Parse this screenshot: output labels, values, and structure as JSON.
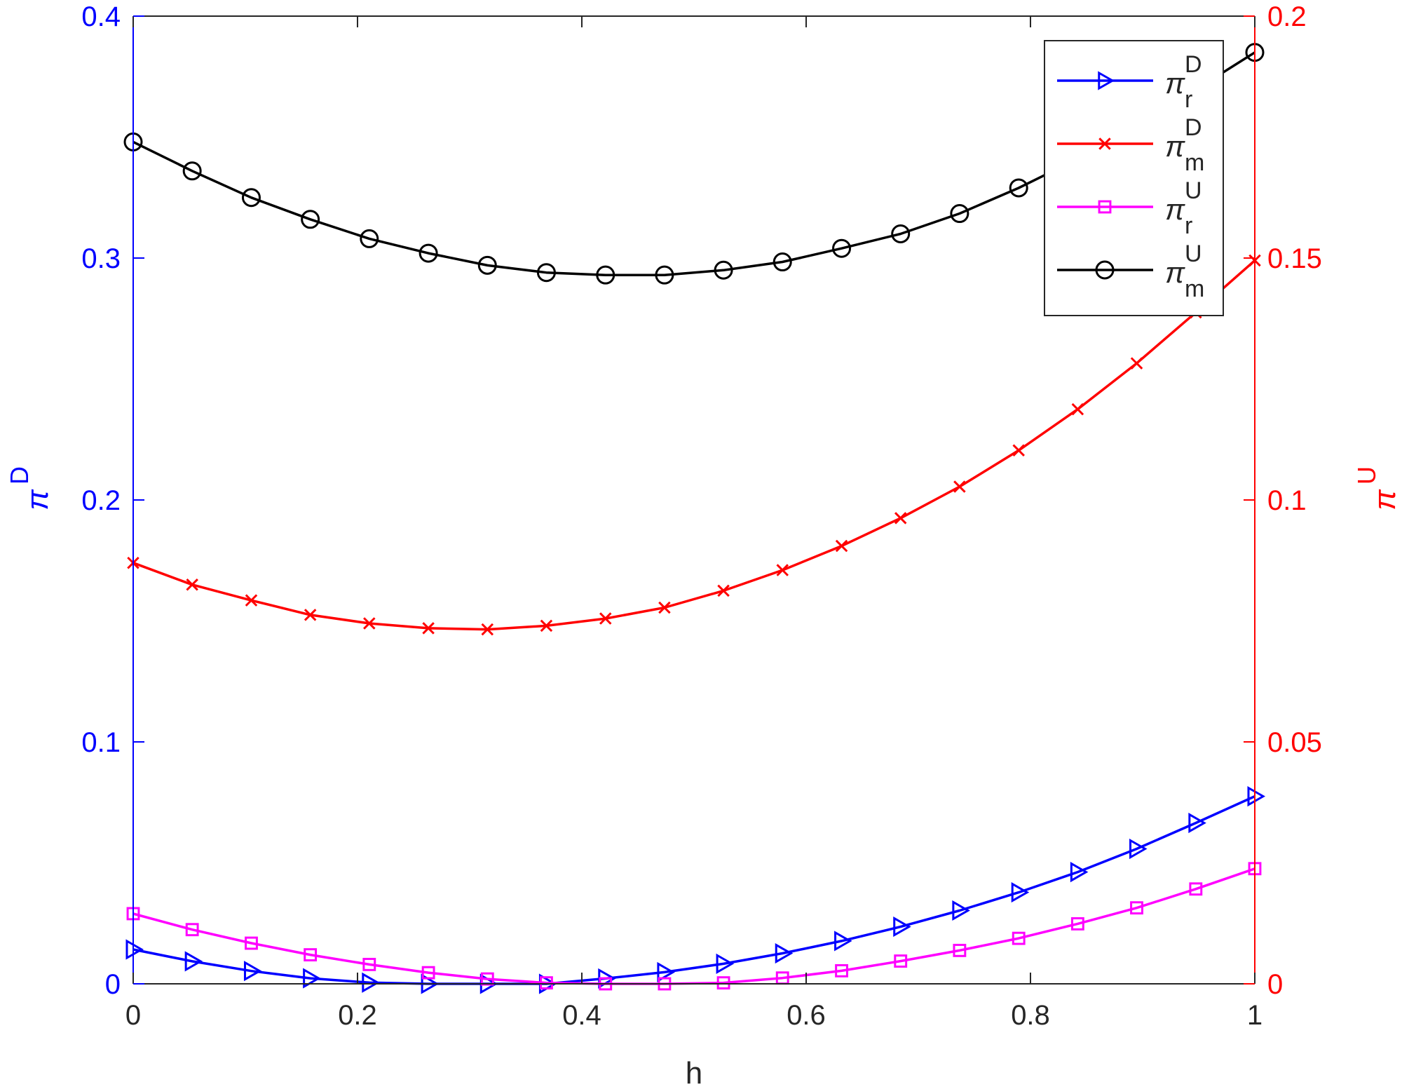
{
  "chart_data": {
    "type": "line",
    "xlabel": "h",
    "ylabel_left": {
      "base": "π",
      "sup": "D"
    },
    "ylabel_right": {
      "base": "π",
      "sup": "U"
    },
    "xlim": [
      0,
      1
    ],
    "ylim_left": [
      0,
      0.4
    ],
    "ylim_right": [
      0,
      0.2
    ],
    "x_ticks": [
      "0",
      "0.2",
      "0.4",
      "0.6",
      "0.8",
      "1"
    ],
    "y_ticks_left": [
      "0",
      "0.1",
      "0.2",
      "0.3",
      "0.4"
    ],
    "y_ticks_right": [
      "0",
      "0.05",
      "0.1",
      "0.15",
      "0.2"
    ],
    "x": [
      0,
      0.0526,
      0.1053,
      0.1579,
      0.2105,
      0.2632,
      0.3158,
      0.3684,
      0.4211,
      0.4737,
      0.5263,
      0.5789,
      0.6316,
      0.6842,
      0.7368,
      0.7895,
      0.8421,
      0.8947,
      0.9474,
      1.0
    ],
    "legend_position": "top-right",
    "grid": false,
    "axis_colors": {
      "left": "#0000ff",
      "right": "#ff0000"
    },
    "series": [
      {
        "name": {
          "base": "π",
          "sup": "D",
          "sub": "r"
        },
        "axis": "left",
        "color": "#0000ff",
        "marker": "triangle-right",
        "values": [
          0.0142,
          0.0093,
          0.0053,
          0.0023,
          0.0005,
          0.0,
          0.0,
          0.0,
          0.0022,
          0.0048,
          0.0083,
          0.0126,
          0.0177,
          0.0236,
          0.0303,
          0.0378,
          0.0462,
          0.0558,
          0.0665,
          0.0775
        ]
      },
      {
        "name": {
          "base": "π",
          "sup": "D",
          "sub": "m"
        },
        "axis": "left",
        "color": "#ff0000",
        "marker": "x",
        "values": [
          0.174,
          0.165,
          0.1585,
          0.1525,
          0.149,
          0.147,
          0.1465,
          0.148,
          0.151,
          0.1555,
          0.1625,
          0.171,
          0.181,
          0.1925,
          0.2055,
          0.2205,
          0.2375,
          0.2565,
          0.2775,
          0.299
        ]
      },
      {
        "name": {
          "base": "π",
          "sup": "U",
          "sub": "r"
        },
        "axis": "right",
        "color": "#ff00ff",
        "marker": "square",
        "values": [
          0.0145,
          0.0112,
          0.0084,
          0.006,
          0.004,
          0.0023,
          0.001,
          0.0002,
          0.0,
          0.0,
          0.0002,
          0.0012,
          0.0027,
          0.0047,
          0.0069,
          0.0094,
          0.0124,
          0.0157,
          0.0196,
          0.0238
        ]
      },
      {
        "name": {
          "base": "π",
          "sup": "U",
          "sub": "m"
        },
        "axis": "right",
        "color": "#000000",
        "marker": "circle",
        "values": [
          0.174,
          0.168,
          0.1625,
          0.158,
          0.154,
          0.151,
          0.1485,
          0.147,
          0.1465,
          0.1465,
          0.1475,
          0.1492,
          0.152,
          0.155,
          0.1592,
          0.1645,
          0.1705,
          0.178,
          0.1848,
          0.1925
        ]
      }
    ]
  }
}
